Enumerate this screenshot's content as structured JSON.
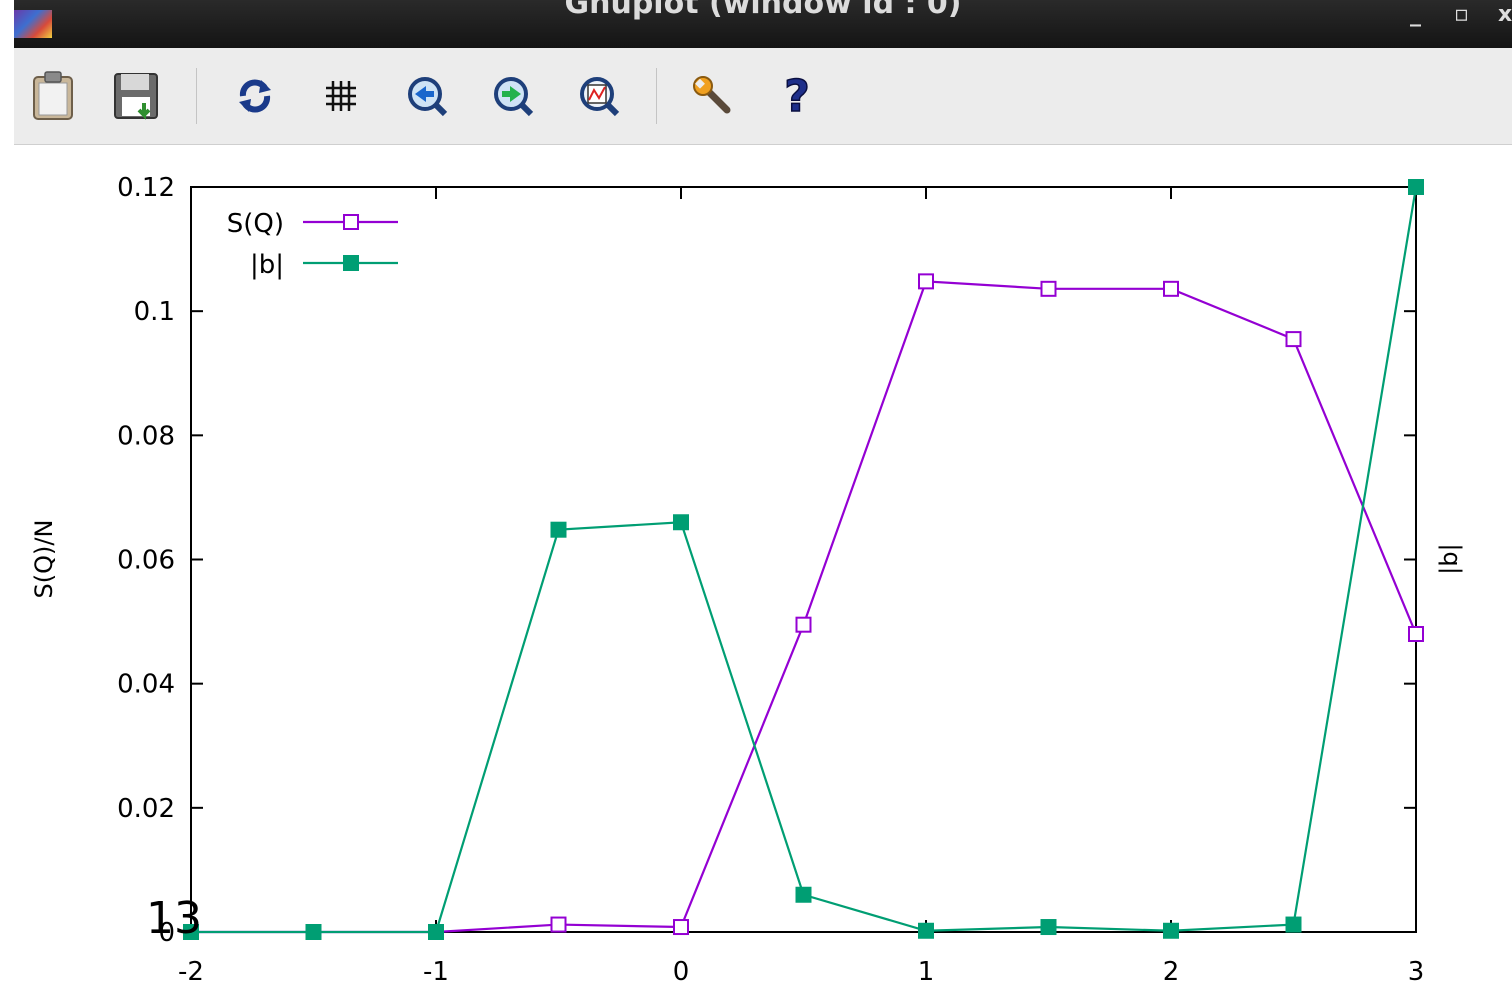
{
  "window": {
    "title": "Gnuplot (window id : 0)",
    "minimize_label": "_",
    "maximize_label": "▫",
    "close_label": "x"
  },
  "toolbar": {
    "buttons": [
      {
        "name": "copy-clipboard-button",
        "icon": "clipboard-icon"
      },
      {
        "name": "export-button",
        "icon": "floppy-save-icon"
      },
      {
        "name": "replot-button",
        "icon": "refresh-icon"
      },
      {
        "name": "grid-button",
        "icon": "grid-icon"
      },
      {
        "name": "prev-zoom-button",
        "icon": "zoom-previous-icon"
      },
      {
        "name": "next-zoom-button",
        "icon": "zoom-next-icon"
      },
      {
        "name": "autoscale-button",
        "icon": "autoscale-icon"
      },
      {
        "name": "config-button",
        "icon": "wrench-icon"
      },
      {
        "name": "help-button",
        "icon": "help-icon"
      }
    ]
  },
  "overlay_text": "13",
  "chart_data": {
    "type": "line",
    "xlabel": "",
    "ylabel": "S(Q)/N",
    "y2label": "|b|",
    "xlim": [
      -2,
      3
    ],
    "ylim": [
      0,
      0.12
    ],
    "x_ticks": [
      "-2",
      "-1",
      "0",
      "1",
      "2",
      "3"
    ],
    "y_ticks": [
      "0",
      "0.02",
      "0.04",
      "0.06",
      "0.08",
      "0.1",
      "0.12"
    ],
    "legend": "top-left",
    "grid": false,
    "x": [
      -2,
      -1.5,
      -1,
      -0.5,
      0,
      0.5,
      1,
      1.5,
      2,
      2.5,
      3
    ],
    "series": [
      {
        "name": "S(Q)",
        "color": "#9400d3",
        "marker": "open-square",
        "values": [
          0,
          0,
          0,
          0.0012,
          0.0008,
          0.0495,
          0.1048,
          0.1036,
          0.1036,
          0.0955,
          0.048
        ]
      },
      {
        "name": "|b|",
        "color": "#009e73",
        "marker": "filled-square",
        "values": [
          0,
          0,
          0,
          0.0648,
          0.066,
          0.006,
          0.0002,
          0.0008,
          0.0002,
          0.0012,
          0.12
        ]
      }
    ]
  }
}
